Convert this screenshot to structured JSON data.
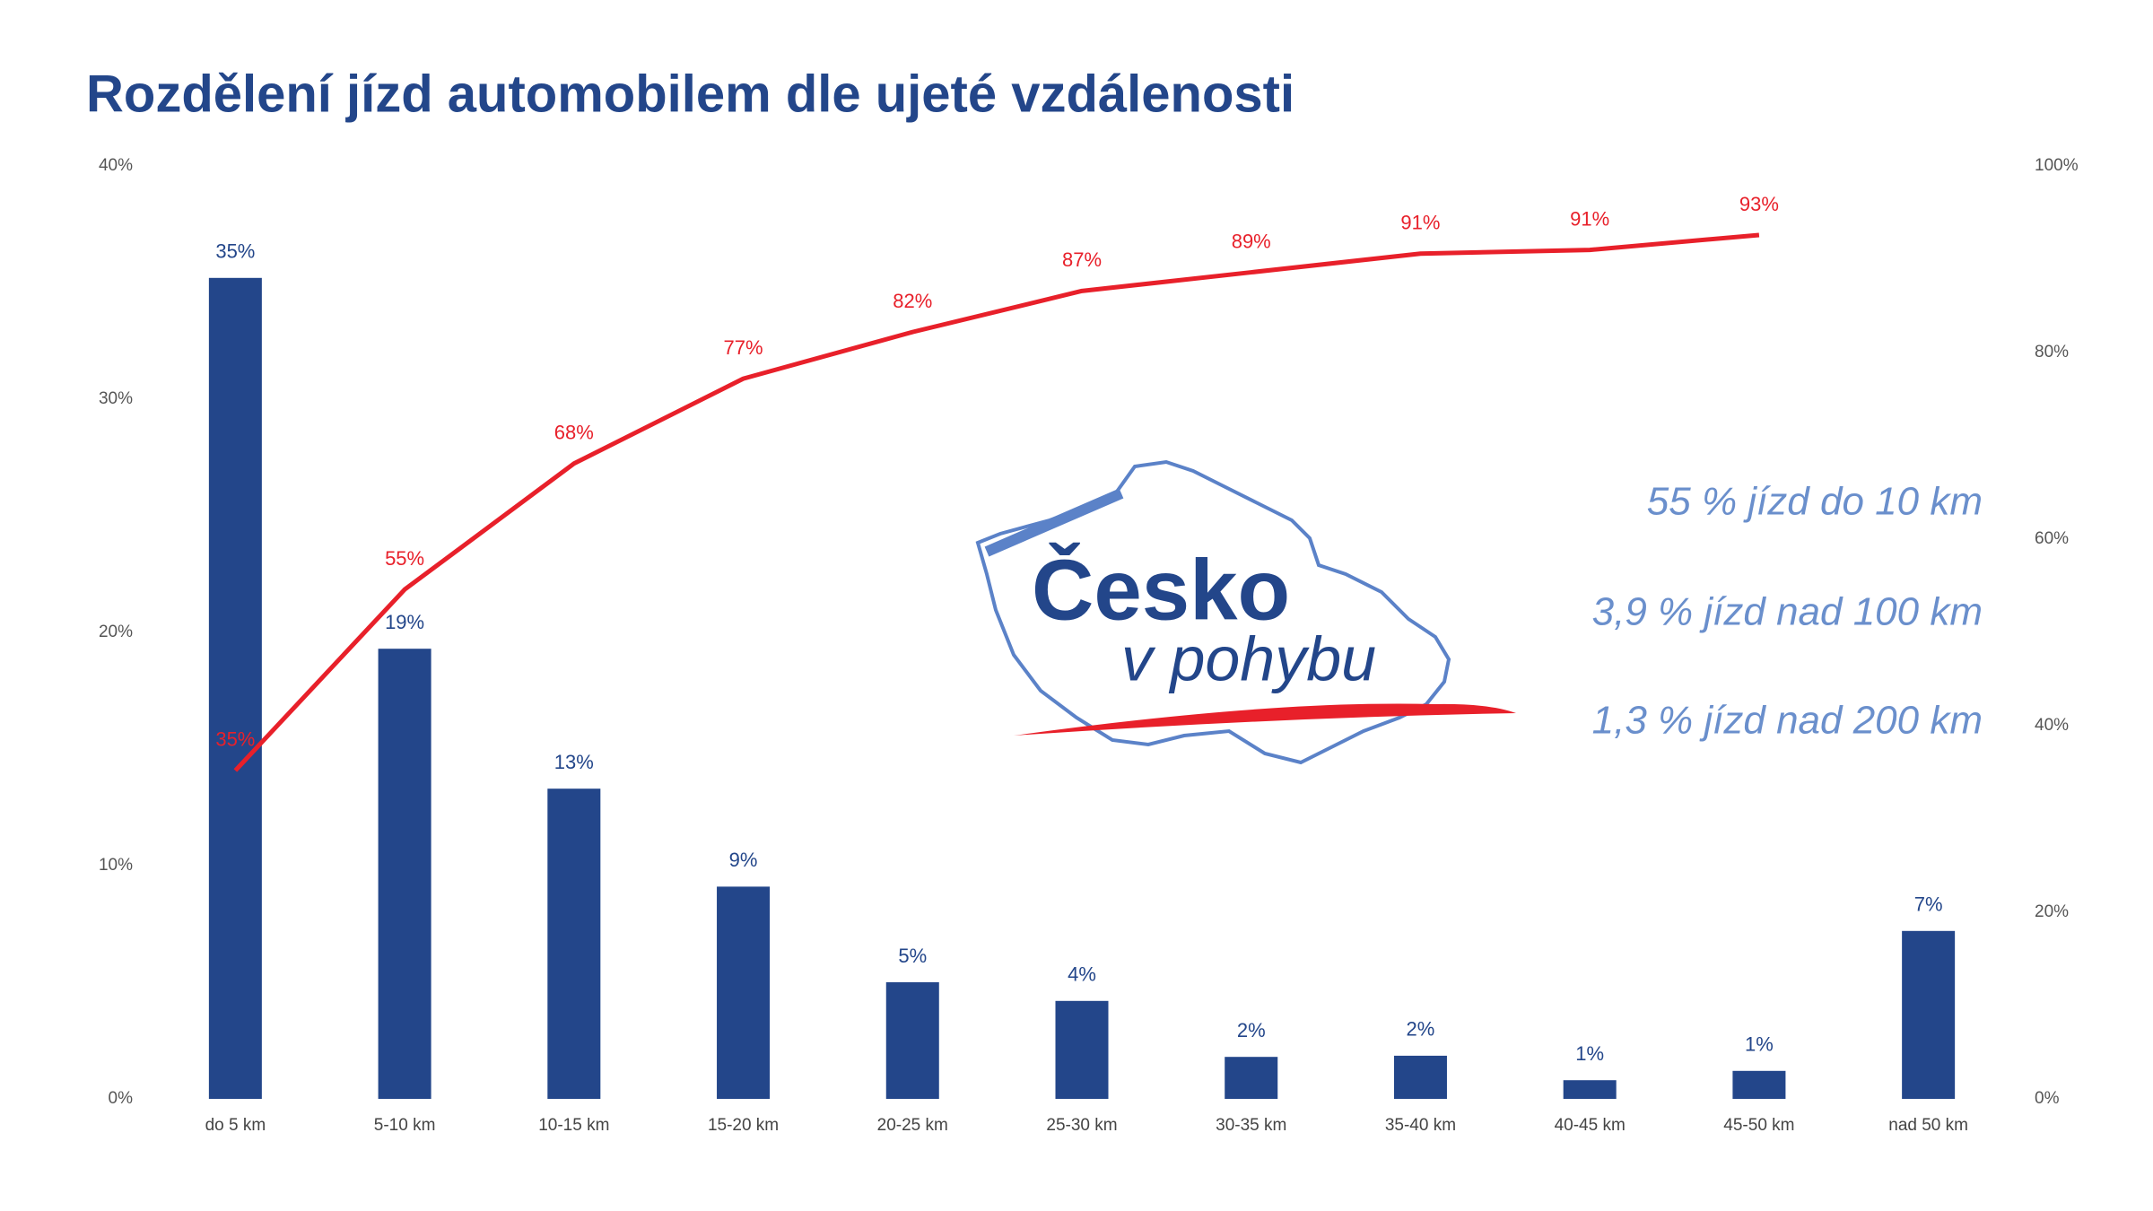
{
  "chart_data": {
    "type": "bar-line",
    "title": "Rozdělení jízd automobilem dle ujeté vzdálenosti",
    "categories": [
      "do 5 km",
      "5-10 km",
      "10-15 km",
      "15-20 km",
      "20-25 km",
      "25-30 km",
      "30-35 km",
      "35-40 km",
      "40-45 km",
      "45-50 km",
      "nad 50 km"
    ],
    "series": [
      {
        "type": "bar",
        "axis": "y",
        "color": "#23468a",
        "values": [
          35.2,
          19.3,
          13.3,
          9.1,
          5.0,
          4.2,
          1.8,
          1.85,
          0.8,
          1.2,
          7.2
        ],
        "value_labels": [
          "35%",
          "19%",
          "13%",
          "9%",
          "5%",
          "4%",
          "2%",
          "2%",
          "1%",
          "1%",
          "7%"
        ]
      },
      {
        "type": "line",
        "axis": "y2",
        "color": "#e8202a",
        "values": [
          35.2,
          54.6,
          68.1,
          77.2,
          82.2,
          86.6,
          88.6,
          90.6,
          91.0,
          92.6,
          null
        ],
        "value_labels": [
          "35%",
          "55%",
          "68%",
          "77%",
          "82%",
          "87%",
          "89%",
          "91%",
          "91%",
          "93%",
          null
        ]
      }
    ],
    "ylim": [
      0,
      40
    ],
    "yticks": [
      {
        "value": 0,
        "label": "0%"
      },
      {
        "value": 10,
        "label": "10%"
      },
      {
        "value": 20,
        "label": "20%"
      },
      {
        "value": 30,
        "label": "30%"
      },
      {
        "value": 40,
        "label": "40%"
      }
    ],
    "y2lim": [
      0,
      100
    ],
    "y2ticks": [
      {
        "value": 0,
        "label": "0%"
      },
      {
        "value": 20,
        "label": "20%"
      },
      {
        "value": 40,
        "label": "40%"
      },
      {
        "value": 60,
        "label": "60%"
      },
      {
        "value": 80,
        "label": "80%"
      },
      {
        "value": 100,
        "label": "100%"
      }
    ],
    "annotations": [
      "55 % jízd do 10 km",
      "3,9 % jízd nad 100 km",
      "1,3 % jízd nad 200 km"
    ],
    "logo": [
      "Česko",
      "v pohybu"
    ]
  }
}
